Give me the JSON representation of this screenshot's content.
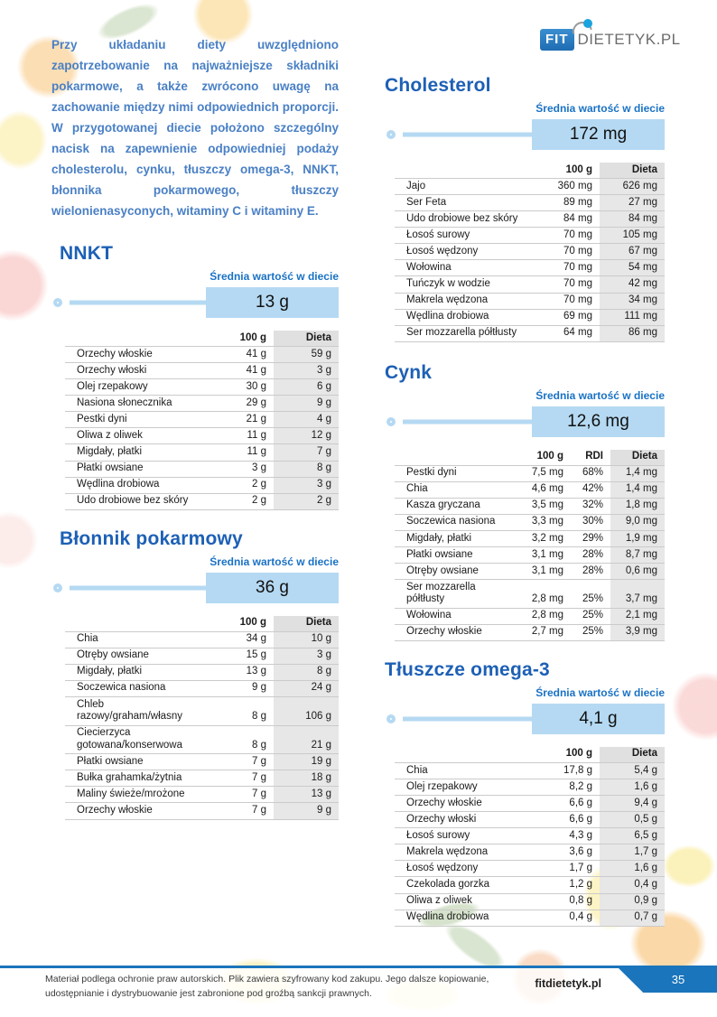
{
  "intro": "Przy układaniu diety uwzględniono zapotrzebowanie na najważniejsze składniki pokarmowe, a także zwrócono uwagę na zachowanie między nimi odpowiednich proporcji. W przygotowanej diecie położono szczególny nacisk na zapewnienie odpowiedniej podaży cholesterolu, cynku, tłuszczy omega-3, NNKT, błonnika pokarmowego, tłuszczy wielonienasyconych, witaminy C i witaminy E.",
  "logo": {
    "fit": "FIT",
    "suffix": "DIETETYK.PL"
  },
  "sections": [
    {
      "id": "nnkt",
      "title": "NNKT",
      "avg_label": "Średnia wartość w diecie",
      "avg_value": "13 g",
      "columns": [
        "",
        "100 g",
        "Dieta"
      ],
      "rows": [
        [
          "Orzechy włoskie",
          "41 g",
          "59 g"
        ],
        [
          "Orzechy włoski",
          "41 g",
          "3 g"
        ],
        [
          "Olej rzepakowy",
          "30 g",
          "6 g"
        ],
        [
          "Nasiona słonecznika",
          "29 g",
          "9 g"
        ],
        [
          "Pestki dyni",
          "21 g",
          "4 g"
        ],
        [
          "Oliwa z oliwek",
          "11 g",
          "12 g"
        ],
        [
          "Migdały, płatki",
          "11 g",
          "7 g"
        ],
        [
          "Płatki owsiane",
          "3 g",
          "8 g"
        ],
        [
          "Wędlina drobiowa",
          "2 g",
          "3 g"
        ],
        [
          "Udo drobiowe bez skóry",
          "2 g",
          "2 g"
        ]
      ]
    },
    {
      "id": "blonnik",
      "title": "Błonnik pokarmowy",
      "avg_label": "Średnia wartość w diecie",
      "avg_value": "36 g",
      "columns": [
        "",
        "100 g",
        "Dieta"
      ],
      "rows": [
        [
          "Chia",
          "34 g",
          "10 g"
        ],
        [
          "Otręby owsiane",
          "15 g",
          "3 g"
        ],
        [
          "Migdały, płatki",
          "13 g",
          "8 g"
        ],
        [
          "Soczewica nasiona",
          "9 g",
          "24 g"
        ],
        [
          "Chleb\nrazowy/graham/własny",
          "8 g",
          "106 g"
        ],
        [
          "Ciecierzyca\ngotowana/konserwowa",
          "8 g",
          "21 g"
        ],
        [
          "Płatki owsiane",
          "7 g",
          "19 g"
        ],
        [
          "Bułka grahamka/żytnia",
          "7 g",
          "18 g"
        ],
        [
          "Maliny świeże/mrożone",
          "7 g",
          "13 g"
        ],
        [
          "Orzechy włoskie",
          "7 g",
          "9 g"
        ]
      ]
    },
    {
      "id": "cholesterol",
      "title": "Cholesterol",
      "avg_label": "Średnia wartość w diecie",
      "avg_value": "172 mg",
      "columns": [
        "",
        "100 g",
        "Dieta"
      ],
      "rows": [
        [
          "Jajo",
          "360 mg",
          "626 mg"
        ],
        [
          "Ser Feta",
          "89 mg",
          "27 mg"
        ],
        [
          "Udo drobiowe bez skóry",
          "84 mg",
          "84 mg"
        ],
        [
          "Łosoś surowy",
          "70 mg",
          "105 mg"
        ],
        [
          "Łosoś wędzony",
          "70 mg",
          "67 mg"
        ],
        [
          "Wołowina",
          "70 mg",
          "54 mg"
        ],
        [
          "Tuńczyk w wodzie",
          "70 mg",
          "42 mg"
        ],
        [
          "Makrela wędzona",
          "70 mg",
          "34 mg"
        ],
        [
          "Wędlina drobiowa",
          "69 mg",
          "111 mg"
        ],
        [
          "Ser mozzarella półtłusty",
          "64 mg",
          "86 mg"
        ]
      ]
    },
    {
      "id": "cynk",
      "title": "Cynk",
      "avg_label": "Średnia wartość w diecie",
      "avg_value": "12,6 mg",
      "columns": [
        "",
        "100 g",
        "RDI",
        "Dieta"
      ],
      "rows": [
        [
          "Pestki dyni",
          "7,5 mg",
          "68%",
          "1,4 mg"
        ],
        [
          "Chia",
          "4,6 mg",
          "42%",
          "1,4 mg"
        ],
        [
          "Kasza gryczana",
          "3,5 mg",
          "32%",
          "1,8 mg"
        ],
        [
          "Soczewica nasiona",
          "3,3 mg",
          "30%",
          "9,0 mg"
        ],
        [
          "Migdały, płatki",
          "3,2 mg",
          "29%",
          "1,9 mg"
        ],
        [
          "Płatki owsiane",
          "3,1 mg",
          "28%",
          "8,7 mg"
        ],
        [
          "Otręby owsiane",
          "3,1 mg",
          "28%",
          "0,6 mg"
        ],
        [
          "Ser mozzarella półtłusty",
          "2,8 mg",
          "25%",
          "3,7 mg"
        ],
        [
          "Wołowina",
          "2,8 mg",
          "25%",
          "2,1 mg"
        ],
        [
          "Orzechy włoskie",
          "2,7 mg",
          "25%",
          "3,9 mg"
        ]
      ]
    },
    {
      "id": "omega3",
      "title": "Tłuszcze omega-3",
      "avg_label": "Średnia wartość w diecie",
      "avg_value": "4,1 g",
      "columns": [
        "",
        "100 g",
        "Dieta"
      ],
      "rows": [
        [
          "Chia",
          "17,8 g",
          "5,4 g"
        ],
        [
          "Olej rzepakowy",
          "8,2 g",
          "1,6 g"
        ],
        [
          "Orzechy włoskie",
          "6,6 g",
          "9,4 g"
        ],
        [
          "Orzechy włoski",
          "6,6 g",
          "0,5 g"
        ],
        [
          "Łosoś surowy",
          "4,3 g",
          "6,5 g"
        ],
        [
          "Makrela wędzona",
          "3,6 g",
          "1,7 g"
        ],
        [
          "Łosoś wędzony",
          "1,7 g",
          "1,6 g"
        ],
        [
          "Czekolada gorzka",
          "1,2 g",
          "0,4 g"
        ],
        [
          "Oliwa z oliwek",
          "0,8 g",
          "0,9 g"
        ],
        [
          "Wędlina drobiowa",
          "0,4 g",
          "0,7 g"
        ]
      ]
    }
  ],
  "footer": {
    "line1": "Materiał podlega ochronie praw autorskich. Plik zawiera szyfrowany kod zakupu. Jego dalsze kopiowanie,",
    "line2": "udostępnianie i dystrybuowanie jest zabronione pod groźbą sankcji prawnych.",
    "site": "fitdietetyk.pl",
    "page_number": "35"
  },
  "colors": {
    "heading_blue": "#1d60b5",
    "light_blue_bar": "#b5d9f2",
    "label_blue": "#1a72c4",
    "footer_blue": "#1b75bc",
    "logo_dot_blue": "#1ba3de",
    "logo_gray": "#6b6c6e",
    "dieta_column_gray": "#e7e7e7"
  }
}
